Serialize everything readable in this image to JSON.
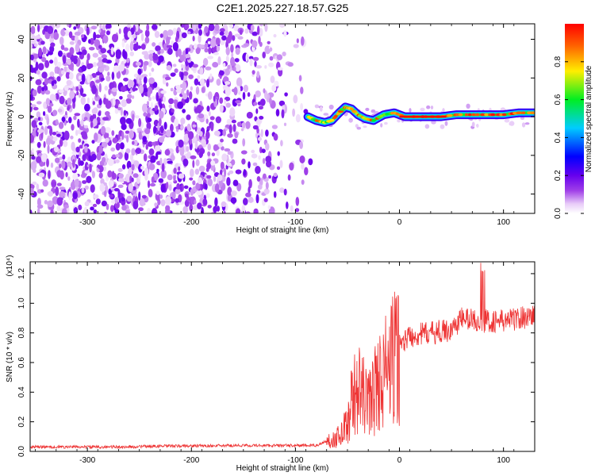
{
  "title": "C2E1.2025.227.18.57.G25",
  "chart_data": [
    {
      "type": "heatmap",
      "xlabel": "Height of straight line (km)",
      "ylabel": "Frequency (Hz)",
      "xlim": [
        -355,
        130
      ],
      "ylim": [
        -50,
        48
      ],
      "xticks": [
        -300,
        -200,
        -100,
        0,
        100
      ],
      "yticks": [
        -40,
        -20,
        0,
        20,
        40
      ],
      "colorbar": {
        "label": "Normalized spectral amplitude",
        "range": [
          0,
          1
        ],
        "ticks": [
          "0.0",
          "0.2",
          "0.4",
          "0.6",
          "0.8"
        ],
        "tick_values": [
          0,
          0.2,
          0.4,
          0.6,
          0.8
        ],
        "colormap": "rainbow (white→violet→blue→cyan→green→yellow→red)",
        "legend_placement": "right"
      },
      "noise_region_x": [
        -355,
        -75
      ],
      "signal_trace": [
        {
          "x": -88,
          "y": 0
        },
        {
          "x": -80,
          "y": -2
        },
        {
          "x": -72,
          "y": -3
        },
        {
          "x": -65,
          "y": -2
        },
        {
          "x": -58,
          "y": 2
        },
        {
          "x": -52,
          "y": 5
        },
        {
          "x": -46,
          "y": 4
        },
        {
          "x": -40,
          "y": 1
        },
        {
          "x": -33,
          "y": -1
        },
        {
          "x": -25,
          "y": -2
        },
        {
          "x": -15,
          "y": 1
        },
        {
          "x": -5,
          "y": 2
        },
        {
          "x": 5,
          "y": 0
        },
        {
          "x": 20,
          "y": 0
        },
        {
          "x": 40,
          "y": 0
        },
        {
          "x": 55,
          "y": 1
        },
        {
          "x": 70,
          "y": 1
        },
        {
          "x": 85,
          "y": 1
        },
        {
          "x": 100,
          "y": 1
        },
        {
          "x": 115,
          "y": 2
        },
        {
          "x": 130,
          "y": 2
        }
      ]
    },
    {
      "type": "line",
      "xlabel": "Height of straight line (km)",
      "ylabel": "SNR (10 * v/v)",
      "scale_note": "(x10⁴)",
      "xlim": [
        -355,
        130
      ],
      "ylim": [
        0,
        1.28
      ],
      "xticks": [
        -300,
        -200,
        -100,
        0,
        100
      ],
      "yticks": [
        "0.0",
        "0.2",
        "0.4",
        "0.6",
        "0.8",
        "1.0",
        "1.2"
      ],
      "ytick_values": [
        0,
        0.2,
        0.4,
        0.6,
        0.8,
        1.0,
        1.2
      ],
      "series_color": "#ee3333",
      "envelope": [
        {
          "x": -355,
          "y": 0.03
        },
        {
          "x": -260,
          "y": 0.03
        },
        {
          "x": -240,
          "y": 0.035
        },
        {
          "x": -150,
          "y": 0.04
        },
        {
          "x": -80,
          "y": 0.04
        },
        {
          "x": -60,
          "y": 0.1
        },
        {
          "x": -50,
          "y": 0.2
        },
        {
          "x": -45,
          "y": 0.4
        },
        {
          "x": -40,
          "y": 0.45
        },
        {
          "x": -30,
          "y": 0.35
        },
        {
          "x": -20,
          "y": 0.5
        },
        {
          "x": -10,
          "y": 0.62
        },
        {
          "x": 0,
          "y": 0.72
        },
        {
          "x": 10,
          "y": 0.78
        },
        {
          "x": 30,
          "y": 0.8
        },
        {
          "x": 50,
          "y": 0.82
        },
        {
          "x": 60,
          "y": 0.9
        },
        {
          "x": 80,
          "y": 0.88
        },
        {
          "x": 100,
          "y": 0.88
        },
        {
          "x": 130,
          "y": 0.92
        }
      ]
    }
  ]
}
